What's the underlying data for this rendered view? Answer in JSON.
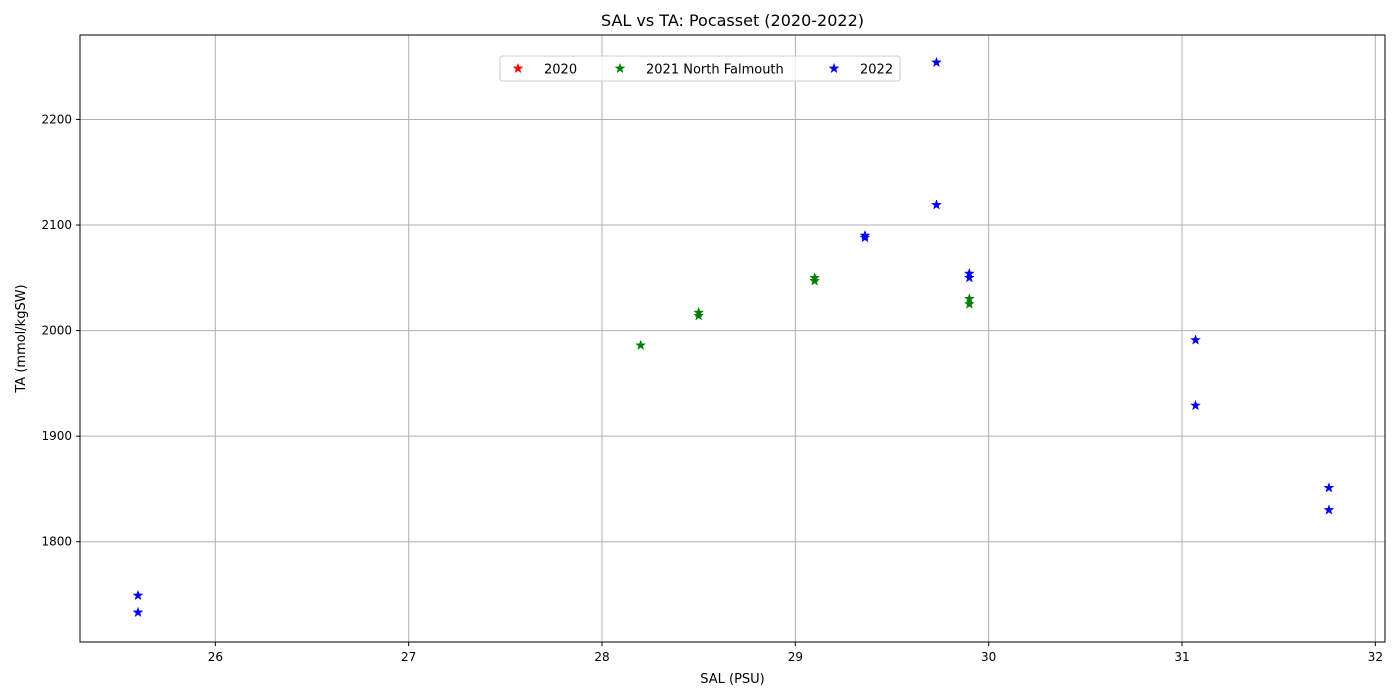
{
  "chart_data": {
    "type": "scatter",
    "title": "SAL vs TA: Pocasset (2020-2022)",
    "xlabel": "SAL (PSU)",
    "ylabel": "TA (mmol/kgSW)",
    "xlim": [
      25.3,
      32.05
    ],
    "ylim": [
      1705,
      2280
    ],
    "xticks": [
      26,
      27,
      28,
      29,
      30,
      31,
      32
    ],
    "yticks": [
      1800,
      1900,
      2000,
      2100,
      2200
    ],
    "grid": true,
    "legend_position": "top-center",
    "marker": "star",
    "series": [
      {
        "name": "2020",
        "color": "#ff0000",
        "points": []
      },
      {
        "name": "2021 North Falmouth",
        "color": "#008000",
        "points": [
          {
            "x": 28.2,
            "y": 1986
          },
          {
            "x": 28.5,
            "y": 2014
          },
          {
            "x": 28.5,
            "y": 2017
          },
          {
            "x": 29.1,
            "y": 2047
          },
          {
            "x": 29.1,
            "y": 2050
          },
          {
            "x": 29.9,
            "y": 2025
          },
          {
            "x": 29.9,
            "y": 2030
          }
        ]
      },
      {
        "name": "2022",
        "color": "#0000ff",
        "points": [
          {
            "x": 25.6,
            "y": 1733
          },
          {
            "x": 25.6,
            "y": 1749
          },
          {
            "x": 29.36,
            "y": 2088
          },
          {
            "x": 29.36,
            "y": 2090
          },
          {
            "x": 29.73,
            "y": 2119
          },
          {
            "x": 29.73,
            "y": 2254
          },
          {
            "x": 29.9,
            "y": 2050
          },
          {
            "x": 29.9,
            "y": 2054
          },
          {
            "x": 31.07,
            "y": 1929
          },
          {
            "x": 31.07,
            "y": 1991
          },
          {
            "x": 31.76,
            "y": 1830
          },
          {
            "x": 31.76,
            "y": 1851
          }
        ]
      }
    ]
  }
}
